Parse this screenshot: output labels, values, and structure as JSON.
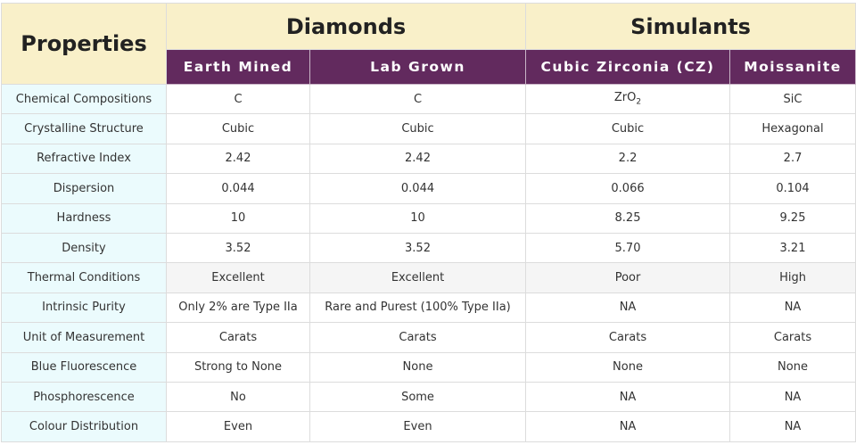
{
  "header": {
    "properties_label": "Properties",
    "groups": [
      {
        "label": "Diamonds"
      },
      {
        "label": "Simulants"
      }
    ],
    "columns": [
      "Earth Mined",
      "Lab Grown",
      "Cubic Zirconia (CZ)",
      "Moissanite"
    ]
  },
  "colors": {
    "header_bg": "#f9f0c9",
    "subheader_bg": "#622a5e",
    "property_bg": "#ebfbfd",
    "highlight_row_bg": "#f5f5f5"
  },
  "rows": [
    {
      "property": "Chemical Compositions",
      "values": [
        "C",
        "C",
        "ZrO",
        "SiC"
      ],
      "cz_subscript": "2"
    },
    {
      "property": "Crystalline Structure",
      "values": [
        "Cubic",
        "Cubic",
        "Cubic",
        "Hexagonal"
      ]
    },
    {
      "property": "Refractive Index",
      "values": [
        "2.42",
        "2.42",
        "2.2",
        "2.7"
      ]
    },
    {
      "property": "Dispersion",
      "values": [
        "0.044",
        "0.044",
        "0.066",
        "0.104"
      ]
    },
    {
      "property": "Hardness",
      "values": [
        "10",
        "10",
        "8.25",
        "9.25"
      ]
    },
    {
      "property": "Density",
      "values": [
        "3.52",
        "3.52",
        "5.70",
        "3.21"
      ]
    },
    {
      "property": "Thermal Conditions",
      "values": [
        "Excellent",
        "Excellent",
        "Poor",
        "High"
      ]
    },
    {
      "property": "Intrinsic Purity",
      "values": [
        "Only 2% are Type IIa",
        "Rare and Purest (100% Type IIa)",
        "NA",
        "NA"
      ]
    },
    {
      "property": "Unit of Measurement",
      "values": [
        "Carats",
        "Carats",
        "Carats",
        "Carats"
      ]
    },
    {
      "property": "Blue Fluorescence",
      "values": [
        "Strong to None",
        "None",
        "None",
        "None"
      ]
    },
    {
      "property": "Phosphorescence",
      "values": [
        "No",
        "Some",
        "NA",
        "NA"
      ]
    },
    {
      "property": "Colour Distribution",
      "values": [
        "Even",
        "Even",
        "NA",
        "NA"
      ]
    }
  ]
}
